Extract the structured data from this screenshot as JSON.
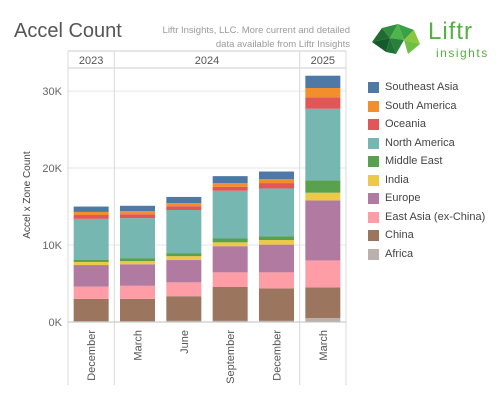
{
  "header": {
    "title": "Accel Count",
    "source_line1": "Liftr Insights, LLC. More current and detailed",
    "source_line2": "data available from Liftr Insights"
  },
  "logo": {
    "name": "Liftr",
    "tagline": "insights",
    "icon": "liftr-geometric-logo-icon"
  },
  "colors": {
    "Southeast Asia": "#4e79a7",
    "South America": "#f28e2b",
    "Oceania": "#e15759",
    "North America": "#76b7b2",
    "Middle East": "#59a14f",
    "India": "#edc948",
    "Europe": "#b07aa1",
    "East Asia (ex-China)": "#ff9da7",
    "China": "#9c755f",
    "Africa": "#bab0ac"
  },
  "chart_data": {
    "type": "bar",
    "stacked": true,
    "title": "Accel Count",
    "ylabel": "Accel x Zone Count",
    "xlabel": "",
    "ylim": [
      0,
      33000
    ],
    "yticks": [
      "0K",
      "10K",
      "20K",
      "30K"
    ],
    "year_groups": [
      {
        "label": "2023",
        "count": 1
      },
      {
        "label": "2024",
        "count": 4
      },
      {
        "label": "2025",
        "count": 1
      }
    ],
    "categories": [
      "December",
      "March",
      "June",
      "September",
      "December",
      "March"
    ],
    "legend_order": [
      "Southeast Asia",
      "South America",
      "Oceania",
      "North America",
      "Middle East",
      "India",
      "Europe",
      "East Asia (ex-China)",
      "China",
      "Africa"
    ],
    "series": [
      {
        "name": "Africa",
        "values": [
          100,
          100,
          150,
          150,
          150,
          500
        ]
      },
      {
        "name": "China",
        "values": [
          2900,
          2900,
          3200,
          4400,
          4200,
          4000
        ]
      },
      {
        "name": "East Asia (ex-China)",
        "values": [
          1600,
          1700,
          1800,
          1900,
          2100,
          3500
        ]
      },
      {
        "name": "Europe",
        "values": [
          2800,
          2800,
          2900,
          3400,
          3600,
          7800
        ]
      },
      {
        "name": "India",
        "values": [
          400,
          400,
          500,
          500,
          600,
          1000
        ]
      },
      {
        "name": "Middle East",
        "values": [
          300,
          400,
          400,
          500,
          500,
          1600
        ]
      },
      {
        "name": "North America",
        "values": [
          5300,
          5200,
          5600,
          6200,
          6200,
          9300
        ]
      },
      {
        "name": "Oceania",
        "values": [
          500,
          500,
          500,
          500,
          700,
          1500
        ]
      },
      {
        "name": "South America",
        "values": [
          400,
          400,
          400,
          500,
          500,
          1200
        ]
      },
      {
        "name": "Southeast Asia",
        "values": [
          700,
          700,
          800,
          900,
          1000,
          1600
        ]
      }
    ]
  }
}
